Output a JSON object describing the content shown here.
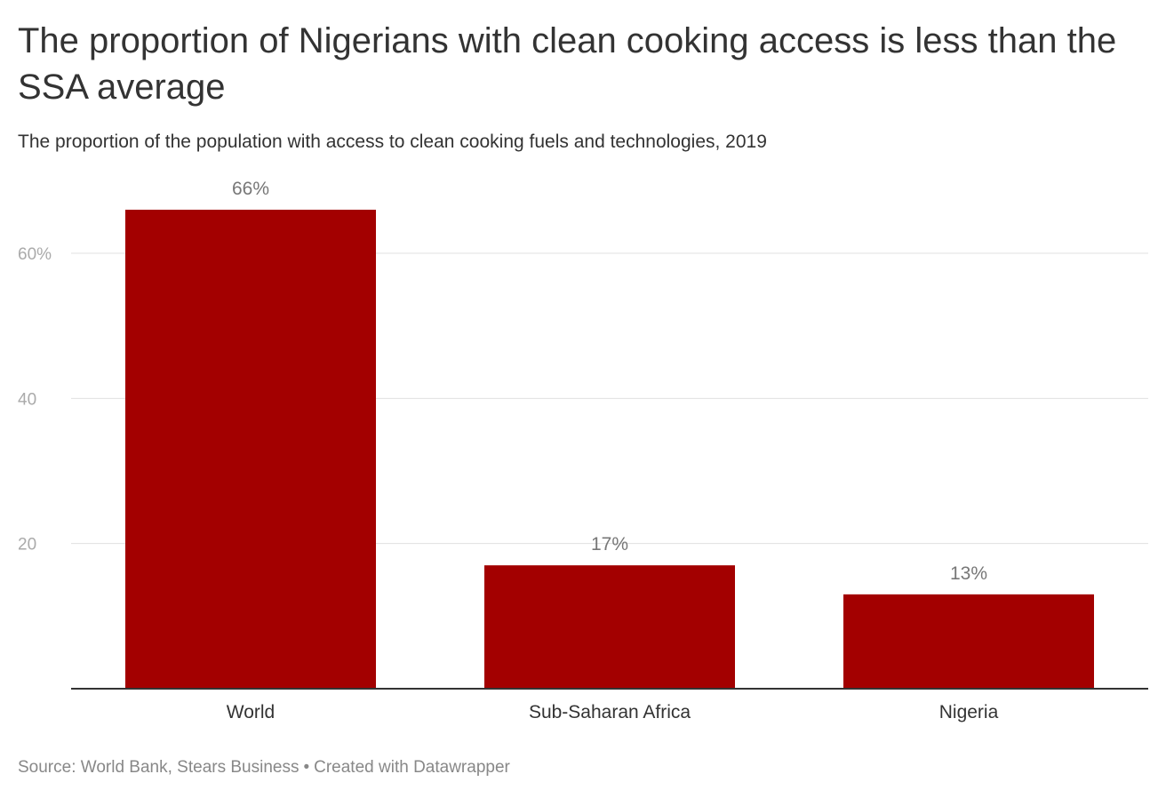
{
  "title": "The proportion of Nigerians with clean cooking access is less than the SSA average",
  "subtitle": "The proportion of the population with access to clean cooking fuels and technologies, 2019",
  "footer": {
    "source": "Source: World Bank, Stears Business",
    "separator": "•",
    "credit": "Created with Datawrapper"
  },
  "chart_data": {
    "type": "bar",
    "categories": [
      "World",
      "Sub-Saharan Africa",
      "Nigeria"
    ],
    "values": [
      66,
      17,
      13
    ],
    "value_labels": [
      "66%",
      "17%",
      "13%"
    ],
    "title": "The proportion of Nigerians with clean cooking access is less than the SSA average",
    "xlabel": "",
    "ylabel": "",
    "ylim": [
      0,
      66
    ],
    "yticks": [
      {
        "value": 20,
        "label": "20"
      },
      {
        "value": 40,
        "label": "40"
      },
      {
        "value": 60,
        "label": "60%"
      }
    ],
    "grid": true,
    "colors": {
      "bar": "#a30000",
      "grid": "#e0e0e0",
      "baseline": "#333333",
      "tick_label": "#aaaaaa",
      "value_label": "#777777",
      "category_label": "#333333"
    }
  }
}
